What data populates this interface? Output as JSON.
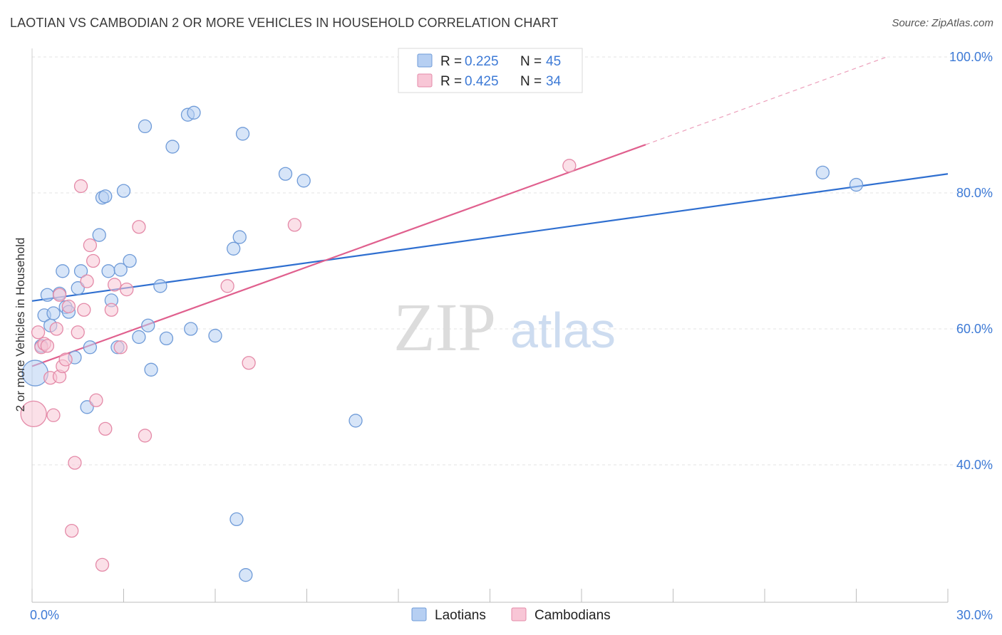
{
  "title": "LAOTIAN VS CAMBODIAN 2 OR MORE VEHICLES IN HOUSEHOLD CORRELATION CHART",
  "source": "Source: ZipAtlas.com",
  "watermark": {
    "zip": "ZIP",
    "atlas": "atlas"
  },
  "colors": {
    "laotian_fill": "#b6cff2",
    "laotian_stroke": "#6f9bd8",
    "laotian_line": "#2f6fd0",
    "cambodian_fill": "#f8c6d6",
    "cambodian_stroke": "#e48aa8",
    "cambodian_line": "#e0608e",
    "tick_text": "#3d7ad6",
    "grid": "#e3e3e3"
  },
  "legend": {
    "rows": [
      {
        "r_label": "R =",
        "r_value": "0.225",
        "n_label": "N =",
        "n_value": "45"
      },
      {
        "r_label": "R =",
        "r_value": "0.425",
        "n_label": "N =",
        "n_value": "34"
      }
    ],
    "bottom": [
      "Laotians",
      "Cambodians"
    ]
  },
  "chart_data": {
    "type": "scatter",
    "title": "LAOTIAN VS CAMBODIAN 2 OR MORE VEHICLES IN HOUSEHOLD CORRELATION CHART",
    "xlabel": "",
    "ylabel": "2 or more Vehicles in Household",
    "xlim": [
      0,
      30
    ],
    "ylim": [
      20,
      100
    ],
    "x_tick_labels": [
      "0.0%",
      "30.0%"
    ],
    "y_ticks": [
      40,
      60,
      80,
      100
    ],
    "y_tick_labels": [
      "40.0%",
      "60.0%",
      "80.0%",
      "100.0%"
    ],
    "grid": true,
    "legend_position": "top-center",
    "series": [
      {
        "name": "Laotians",
        "r": 0.225,
        "n": 45,
        "trend": {
          "x": [
            0,
            30
          ],
          "y": [
            64.1,
            82.8
          ],
          "dashed_extension": false
        },
        "points": [
          {
            "x": 0.1,
            "y": 53.5,
            "big": true
          },
          {
            "x": 0.3,
            "y": 57.5
          },
          {
            "x": 0.4,
            "y": 62.0
          },
          {
            "x": 0.5,
            "y": 65.0
          },
          {
            "x": 0.6,
            "y": 60.5
          },
          {
            "x": 0.7,
            "y": 62.3
          },
          {
            "x": 0.9,
            "y": 65.2
          },
          {
            "x": 1.0,
            "y": 68.5
          },
          {
            "x": 1.1,
            "y": 63.2
          },
          {
            "x": 1.2,
            "y": 62.5
          },
          {
            "x": 1.4,
            "y": 55.8
          },
          {
            "x": 1.5,
            "y": 66.0
          },
          {
            "x": 1.6,
            "y": 68.5
          },
          {
            "x": 1.8,
            "y": 48.5
          },
          {
            "x": 1.9,
            "y": 57.3
          },
          {
            "x": 2.2,
            "y": 73.8
          },
          {
            "x": 2.3,
            "y": 79.3
          },
          {
            "x": 2.4,
            "y": 79.5
          },
          {
            "x": 2.5,
            "y": 68.5
          },
          {
            "x": 2.6,
            "y": 64.2
          },
          {
            "x": 2.8,
            "y": 57.3
          },
          {
            "x": 2.9,
            "y": 68.7
          },
          {
            "x": 3.0,
            "y": 80.3
          },
          {
            "x": 3.2,
            "y": 70.0
          },
          {
            "x": 3.5,
            "y": 58.8
          },
          {
            "x": 3.8,
            "y": 60.5
          },
          {
            "x": 3.9,
            "y": 54.0
          },
          {
            "x": 4.2,
            "y": 66.3
          },
          {
            "x": 4.4,
            "y": 58.6
          },
          {
            "x": 4.6,
            "y": 86.8
          },
          {
            "x": 5.1,
            "y": 91.5
          },
          {
            "x": 5.3,
            "y": 91.8
          },
          {
            "x": 5.2,
            "y": 60.0
          },
          {
            "x": 3.7,
            "y": 89.8
          },
          {
            "x": 6.0,
            "y": 59.0
          },
          {
            "x": 6.6,
            "y": 71.8
          },
          {
            "x": 6.8,
            "y": 73.5
          },
          {
            "x": 6.9,
            "y": 88.7
          },
          {
            "x": 8.3,
            "y": 82.8
          },
          {
            "x": 8.9,
            "y": 81.8
          },
          {
            "x": 10.6,
            "y": 46.5
          },
          {
            "x": 6.7,
            "y": 32.0
          },
          {
            "x": 7.0,
            "y": 23.8
          },
          {
            "x": 25.9,
            "y": 83.0
          },
          {
            "x": 27.0,
            "y": 81.2
          }
        ]
      },
      {
        "name": "Cambodians",
        "r": 0.425,
        "n": 34,
        "trend": {
          "x": [
            0,
            20.1
          ],
          "y": [
            54.5,
            87.1
          ],
          "dashed_extension": true,
          "dashed_to": {
            "x": 28.0,
            "y": 100.0
          }
        },
        "points": [
          {
            "x": 0.05,
            "y": 47.5,
            "big": true
          },
          {
            "x": 0.2,
            "y": 59.5
          },
          {
            "x": 0.3,
            "y": 57.3
          },
          {
            "x": 0.4,
            "y": 57.8
          },
          {
            "x": 0.5,
            "y": 57.5
          },
          {
            "x": 0.6,
            "y": 52.8
          },
          {
            "x": 0.7,
            "y": 47.3
          },
          {
            "x": 0.8,
            "y": 60.0
          },
          {
            "x": 0.9,
            "y": 53.0
          },
          {
            "x": 1.0,
            "y": 54.5
          },
          {
            "x": 1.1,
            "y": 55.5
          },
          {
            "x": 1.2,
            "y": 63.3
          },
          {
            "x": 0.9,
            "y": 65.0
          },
          {
            "x": 1.3,
            "y": 30.3
          },
          {
            "x": 1.4,
            "y": 40.3
          },
          {
            "x": 1.5,
            "y": 59.5
          },
          {
            "x": 1.6,
            "y": 81.0
          },
          {
            "x": 1.7,
            "y": 62.8
          },
          {
            "x": 1.8,
            "y": 67.0
          },
          {
            "x": 1.9,
            "y": 72.3
          },
          {
            "x": 2.0,
            "y": 70.0
          },
          {
            "x": 2.1,
            "y": 49.5
          },
          {
            "x": 2.3,
            "y": 25.3
          },
          {
            "x": 2.4,
            "y": 45.3
          },
          {
            "x": 2.6,
            "y": 62.8
          },
          {
            "x": 2.7,
            "y": 66.5
          },
          {
            "x": 2.9,
            "y": 57.3
          },
          {
            "x": 3.1,
            "y": 65.8
          },
          {
            "x": 3.5,
            "y": 75.0
          },
          {
            "x": 3.7,
            "y": 44.3
          },
          {
            "x": 6.4,
            "y": 66.3
          },
          {
            "x": 7.1,
            "y": 55.0
          },
          {
            "x": 8.6,
            "y": 75.3
          },
          {
            "x": 17.6,
            "y": 84.0
          }
        ]
      }
    ]
  }
}
